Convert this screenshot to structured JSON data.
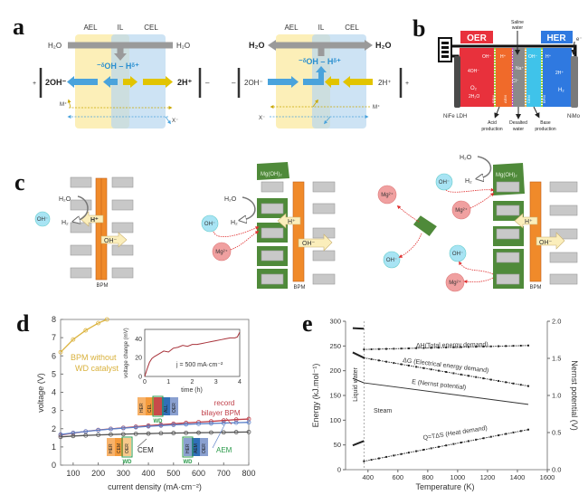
{
  "panel_labels": {
    "a": "a",
    "b": "b",
    "c": "c",
    "d": "d",
    "e": "e"
  },
  "panel_a": {
    "layers": [
      "AEL",
      "IL",
      "CEL"
    ],
    "water": "H₂O",
    "dissociation": "⁻ᵟOH – Hᵟ⁺",
    "hydroxide": "2OH⁻",
    "proton": "2H⁺",
    "cation": "M⁺",
    "anion": "X⁻",
    "plus": "+",
    "minus": "–",
    "colors": {
      "ael": "#fbe9a0",
      "cel": "#b8d7ef",
      "oh_arrow": "#4aa3dc",
      "h_arrow": "#e2c400",
      "water_arrow": "#9a9a9a"
    }
  },
  "panel_b": {
    "oer": "OER",
    "her": "HER",
    "saline": [
      "Saline",
      "water"
    ],
    "anode": "NiFe LDH",
    "cathode": "NiMo",
    "acid": [
      "Acid",
      "production"
    ],
    "desalted": [
      "Desalted",
      "water"
    ],
    "base": [
      "Base",
      "production"
    ],
    "membranes": [
      "BPM",
      "AEM",
      "CEM",
      "BPM"
    ],
    "ions": {
      "oh": "OH⁻",
      "h": "H⁺",
      "four_oh": "4OH⁻",
      "o2": "O₂",
      "two_h2o": "2H₂O",
      "na": "Na⁺",
      "cl": "Cl⁻",
      "two_h": "2H⁺",
      "h2": "H₂",
      "electron": "e⁻"
    },
    "colors": {
      "oer": "#e8313c",
      "her": "#2f79e0",
      "acid": "#f06a2a",
      "saline": "#8a8a8a",
      "base": "#3fc3ea"
    }
  },
  "panel_c": {
    "water": "H₂O",
    "hydrogen": "H₂",
    "hydroxide": "OH⁻",
    "proton": "H⁺",
    "bpm": "BPM",
    "mgoh2": "Mg(OH)₂",
    "mg": "Mg²⁺"
  },
  "chart_data": [
    {
      "type": "line",
      "panel": "d",
      "xlabel": "current density (mA·cm⁻²)",
      "ylabel": "voltage (V)",
      "xlim": [
        50,
        800
      ],
      "ylim": [
        0,
        8
      ],
      "xticks": [
        100,
        200,
        300,
        400,
        500,
        600,
        700,
        800
      ],
      "yticks": [
        0,
        1,
        2,
        3,
        4,
        5,
        6,
        7,
        8
      ],
      "series": [
        {
          "name": "BPM without WD catalyst",
          "label_lines": [
            "BPM without",
            "WD catalyst"
          ],
          "color": "#dcb440",
          "x": [
            50,
            100,
            150,
            200,
            235
          ],
          "y": [
            6.2,
            6.9,
            7.4,
            7.8,
            8.0
          ]
        },
        {
          "name": "record bilayer BPM",
          "label_lines": [
            "record",
            "bilayer  BPM"
          ],
          "color": "#c0404a",
          "x": [
            50,
            100,
            150,
            200,
            250,
            300,
            350,
            400,
            450,
            500,
            550,
            600,
            650,
            700,
            750,
            800
          ],
          "y": [
            1.65,
            1.76,
            1.85,
            1.93,
            1.99,
            2.05,
            2.11,
            2.17,
            2.22,
            2.27,
            2.32,
            2.36,
            2.4,
            2.45,
            2.5,
            2.53
          ]
        },
        {
          "name": "AEM",
          "label_lines": [
            "AEM"
          ],
          "color": "#5a7fc8",
          "x": [
            50,
            100,
            150,
            200,
            250,
            300,
            350,
            400,
            450,
            500,
            550,
            600,
            650,
            700,
            750,
            800
          ],
          "y": [
            1.68,
            1.77,
            1.85,
            1.92,
            1.98,
            2.03,
            2.08,
            2.13,
            2.17,
            2.21,
            2.24,
            2.27,
            2.29,
            2.31,
            2.33,
            2.35
          ]
        },
        {
          "name": "CEM",
          "label_lines": [
            "CEM"
          ],
          "color": "#555555",
          "x": [
            50,
            100,
            150,
            200,
            250,
            300,
            350,
            400,
            450,
            500,
            550,
            600,
            650,
            700,
            750,
            800
          ],
          "y": [
            1.55,
            1.6,
            1.63,
            1.66,
            1.68,
            1.7,
            1.72,
            1.73,
            1.75,
            1.76,
            1.77,
            1.78,
            1.79,
            1.8,
            1.81,
            1.82
          ]
        }
      ],
      "stack_labels": {
        "bpm": [
          "HER",
          "CEL",
          "",
          "ALL",
          "OER"
        ],
        "cem": [
          "HER",
          "CEM",
          "OER"
        ],
        "aem": [
          "HER",
          "AEM",
          "OER"
        ],
        "wd": "WD"
      },
      "inset": {
        "type": "line",
        "xlabel": "time (h)",
        "ylabel": "voltage change (mV)",
        "annotation": "j = 500 mA·cm⁻²",
        "xlim": [
          0,
          4
        ],
        "ylim": [
          0,
          50
        ],
        "xticks": [
          0,
          1,
          2,
          3,
          4
        ],
        "yticks": [
          0,
          20,
          40
        ],
        "color": "#a8323a",
        "x": [
          0,
          0.1,
          0.2,
          0.3,
          0.4,
          0.6,
          0.8,
          1.0,
          1.2,
          1.4,
          1.6,
          1.8,
          2.0,
          2.2,
          2.4,
          2.6,
          2.8,
          3.0,
          3.2,
          3.4,
          3.6,
          3.8,
          3.9,
          4.0
        ],
        "y": [
          0,
          8,
          15,
          19,
          21,
          24,
          27,
          26,
          30,
          31,
          33,
          32,
          34,
          34,
          35,
          36,
          37,
          38,
          39,
          40,
          41,
          41,
          42,
          47
        ]
      }
    },
    {
      "type": "line",
      "panel": "e",
      "xlabel": "Temperature (K)",
      "ylabel": "Energy (kJ.mol⁻¹)",
      "y2label": "Nernst potential (V)",
      "xlim": [
        250,
        1600
      ],
      "ylim": [
        0,
        300
      ],
      "y2lim": [
        0,
        2.0
      ],
      "xticks": [
        400,
        600,
        800,
        1000,
        1200,
        1400,
        1600
      ],
      "yticks": [
        0,
        50,
        100,
        150,
        200,
        250,
        300
      ],
      "y2ticks": [
        "0.0",
        "0.5",
        "1.0",
        "1.5",
        "2.0"
      ],
      "region_labels": {
        "liquid": "Liquid water",
        "steam": "Steam"
      },
      "boundary_T": 373,
      "series": [
        {
          "name": "ΔH(Total energy demand)",
          "axis": "left",
          "markers": true,
          "liquid": {
            "x": [
              298,
              373
            ],
            "y": [
              286,
              285
            ]
          },
          "steam": {
            "x": [
              373,
              1473
            ],
            "y": [
              243,
              251
            ]
          }
        },
        {
          "name": "ΔG (Electrical energy demand)",
          "axis": "left",
          "markers": true,
          "liquid": {
            "x": [
              298,
              373
            ],
            "y": [
              237,
              226
            ]
          },
          "steam": {
            "x": [
              373,
              1473
            ],
            "y": [
              226,
              169
            ]
          }
        },
        {
          "name": "E (Nernst potential)",
          "axis": "right",
          "markers": false,
          "liquid": {
            "x": [
              298,
              373
            ],
            "y": [
              1.23,
              1.17
            ]
          },
          "steam": {
            "x": [
              373,
              1473
            ],
            "y": [
              1.17,
              0.88
            ]
          }
        },
        {
          "name": "Q=TΔS (Heat demand)",
          "axis": "left",
          "markers": true,
          "liquid": {
            "x": [
              298,
              373
            ],
            "y": [
              49,
              58
            ]
          },
          "steam": {
            "x": [
              373,
              1473
            ],
            "y": [
              17,
              81
            ]
          }
        }
      ]
    }
  ]
}
